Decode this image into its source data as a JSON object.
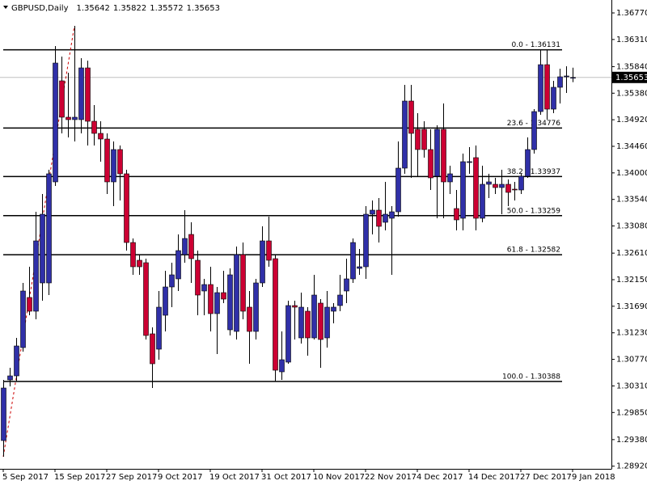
{
  "chart_data": {
    "type": "candlestick",
    "title": "GBPUSD,Daily",
    "categories": [
      "5 Sep 2017",
      null,
      null,
      null,
      null,
      null,
      null,
      null,
      "15 Sep 2017",
      null,
      null,
      null,
      null,
      null,
      null,
      null,
      "27 Sep 2017",
      null,
      null,
      null,
      null,
      null,
      null,
      null,
      "9 Oct 2017",
      null,
      null,
      null,
      null,
      null,
      null,
      null,
      "19 Oct 2017",
      null,
      null,
      null,
      null,
      null,
      null,
      null,
      "31 Oct 2017",
      null,
      null,
      null,
      null,
      null,
      null,
      null,
      "10 Nov 2017",
      null,
      null,
      null,
      null,
      null,
      null,
      null,
      "22 Nov 2017",
      null,
      null,
      null,
      null,
      null,
      null,
      null,
      "4 Dec 2017",
      null,
      null,
      null,
      null,
      null,
      null,
      null,
      "14 Dec 2017",
      null,
      null,
      null,
      null,
      null,
      null,
      null,
      "27 Dec 2017",
      null,
      null,
      null,
      null,
      null,
      null,
      null,
      "9 Jan 2018"
    ],
    "open": [
      1.29364,
      1.30414,
      1.30484,
      1.30974,
      1.31842,
      1.31604,
      1.32094,
      1.32094,
      1.33844,
      1.35594,
      1.34964,
      1.34922,
      1.34922,
      1.35818,
      1.34894,
      1.34684,
      1.34586,
      1.33844,
      1.34404,
      1.33984,
      1.32794,
      1.32486,
      1.32444,
      1.31212,
      1.30946,
      1.31534,
      1.32024,
      1.32164,
      1.32584,
      1.32934,
      1.32486,
      1.31954,
      1.32066,
      1.31562,
      1.31926,
      1.31282,
      1.31254,
      1.32584,
      1.31674,
      1.31254,
      1.32094,
      1.32822,
      1.32514,
      1.30554,
      1.30722,
      1.31702,
      1.31142,
      1.31604,
      1.31142,
      1.31744,
      1.31142,
      1.31604,
      1.31702,
      1.31954,
      1.32164,
      1.32346,
      1.32374,
      1.33284,
      1.33354,
      1.33144,
      1.33214,
      1.33326,
      1.34082,
      1.35244,
      1.34754,
      1.34754,
      1.34404,
      1.33942,
      1.34754,
      1.33844,
      1.33382,
      1.33214,
      1.34194,
      1.34264,
      1.33214,
      1.33802,
      1.33802,
      1.33746,
      1.33802,
      1.33718,
      1.33704,
      1.33942,
      1.34404,
      1.35062,
      1.35874,
      1.35104,
      1.35482,
      1.35664,
      1.35642
    ],
    "high": [
      1.30414,
      1.30624,
      1.31142,
      1.32094,
      1.32374,
      1.33326,
      1.33634,
      1.34054,
      1.36196,
      1.36014,
      1.35734,
      1.36546,
      1.35986,
      1.35944,
      1.35174,
      1.34894,
      1.34684,
      1.34544,
      1.34474,
      1.34054,
      1.32864,
      1.32584,
      1.32514,
      1.31324,
      1.31954,
      1.32304,
      1.32444,
      1.32934,
      1.33354,
      1.33144,
      1.32654,
      1.32164,
      1.32374,
      1.32024,
      1.32304,
      1.32346,
      1.32724,
      1.32794,
      1.31954,
      1.32164,
      1.33074,
      1.33242,
      1.32584,
      1.31254,
      1.31786,
      1.31786,
      1.31926,
      1.31674,
      1.32234,
      1.31814,
      1.31954,
      1.31744,
      1.32234,
      1.32514,
      1.32864,
      1.32682,
      1.33424,
      1.33522,
      1.33564,
      1.33844,
      1.33424,
      1.34544,
      1.35524,
      1.35524,
      1.35034,
      1.34894,
      1.34754,
      1.34824,
      1.35202,
      1.34124,
      1.33704,
      1.34334,
      1.34446,
      1.34474,
      1.34124,
      1.33984,
      1.33914,
      1.34054,
      1.33886,
      1.33844,
      1.33984,
      1.34614,
      1.35104,
      1.36131,
      1.36126,
      1.35594,
      1.35804,
      1.35846,
      1.35822
    ],
    "low": [
      1.29084,
      1.30302,
      1.30386,
      1.30904,
      1.31534,
      1.31464,
      1.31786,
      1.31884,
      1.33774,
      1.34684,
      1.34614,
      1.34544,
      1.34684,
      1.34474,
      1.34474,
      1.34194,
      1.33634,
      1.33424,
      1.33522,
      1.32654,
      1.32234,
      1.32234,
      1.31114,
      1.30274,
      1.30764,
      1.31254,
      1.31674,
      1.31954,
      1.32444,
      1.32094,
      1.31534,
      1.31534,
      1.31254,
      1.30862,
      1.31744,
      1.31184,
      1.31114,
      1.31464,
      1.30694,
      1.31114,
      1.32024,
      1.32374,
      1.30388,
      1.30414,
      1.30694,
      1.31114,
      1.31044,
      1.30834,
      1.31114,
      1.30624,
      1.30974,
      1.31394,
      1.31604,
      1.31744,
      1.32094,
      1.32234,
      1.32164,
      1.32934,
      1.32794,
      1.33004,
      1.32234,
      1.33242,
      1.33984,
      1.33914,
      1.33942,
      1.34264,
      1.33704,
      1.33214,
      1.33214,
      1.33634,
      1.33004,
      1.33004,
      1.33984,
      1.33004,
      1.33144,
      1.33564,
      1.33634,
      1.33284,
      1.33424,
      1.33522,
      1.33634,
      1.33914,
      1.34334,
      1.35006,
      1.34922,
      1.35034,
      1.35202,
      1.35384,
      1.35572
    ],
    "close": [
      1.30274,
      1.30484,
      1.31002,
      1.31954,
      1.31604,
      1.32822,
      1.33284,
      1.33984,
      1.35902,
      1.34964,
      1.34922,
      1.34964,
      1.35818,
      1.34894,
      1.34684,
      1.34586,
      1.33844,
      1.34404,
      1.33984,
      1.32794,
      1.32374,
      1.32374,
      1.31184,
      1.30694,
      1.31674,
      1.32024,
      1.32234,
      1.32654,
      1.32864,
      1.32514,
      1.31884,
      1.32066,
      1.31562,
      1.31926,
      1.31814,
      1.32234,
      1.32584,
      1.31604,
      1.31254,
      1.32094,
      1.32822,
      1.32486,
      1.30582,
      1.30764,
      1.31702,
      1.31674,
      1.31674,
      1.31142,
      1.31884,
      1.31114,
      1.31674,
      1.31674,
      1.31884,
      1.32164,
      1.32794,
      1.32374,
      1.33284,
      1.33354,
      1.33074,
      1.33284,
      1.33326,
      1.34082,
      1.35244,
      1.34684,
      1.34404,
      1.34404,
      1.33914,
      1.34754,
      1.33844,
      1.33984,
      1.33186,
      1.34194,
      1.34194,
      1.33214,
      1.33802,
      1.33844,
      1.33746,
      1.33802,
      1.33662,
      1.33704,
      1.33942,
      1.34404,
      1.35062,
      1.35874,
      1.35104,
      1.35482,
      1.35664,
      1.35678,
      1.35653
    ],
    "up_color": "#3030a8",
    "down_color": "#cc0033",
    "ylim": [
      1.28874,
      1.36994
    ],
    "yticks": [
      {
        "value": 1.3677,
        "label": "1.36770"
      },
      {
        "value": 1.3631,
        "label": "1.36310"
      },
      {
        "value": 1.3584,
        "label": "1.35840"
      },
      {
        "value": 1.3538,
        "label": "1.35380"
      },
      {
        "value": 1.3492,
        "label": "1.34920"
      },
      {
        "value": 1.3446,
        "label": "1.34460"
      },
      {
        "value": 1.34,
        "label": "1.34000"
      },
      {
        "value": 1.3354,
        "label": "1.33540"
      },
      {
        "value": 1.3308,
        "label": "1.33080"
      },
      {
        "value": 1.3261,
        "label": "1.32610"
      },
      {
        "value": 1.3215,
        "label": "1.32150"
      },
      {
        "value": 1.3169,
        "label": "1.31690"
      },
      {
        "value": 1.3123,
        "label": "1.31230"
      },
      {
        "value": 1.3077,
        "label": "1.30770"
      },
      {
        "value": 1.3031,
        "label": "1.30310"
      },
      {
        "value": 1.2985,
        "label": "1.29850"
      },
      {
        "value": 1.2938,
        "label": "1.29380"
      },
      {
        "value": 1.2892,
        "label": "1.28920"
      }
    ],
    "fib_levels": [
      {
        "value": 1.36131,
        "label": "0.0 - 1.36131"
      },
      {
        "value": 1.34776,
        "label": "23.6 - 1.34776"
      },
      {
        "value": 1.33937,
        "label": "38.2 - 1.33937"
      },
      {
        "value": 1.33259,
        "label": "50.0 - 1.33259"
      },
      {
        "value": 1.32582,
        "label": "61.8 - 1.32582"
      },
      {
        "value": 1.30388,
        "label": "100.0 - 1.30388"
      }
    ]
  }
}
